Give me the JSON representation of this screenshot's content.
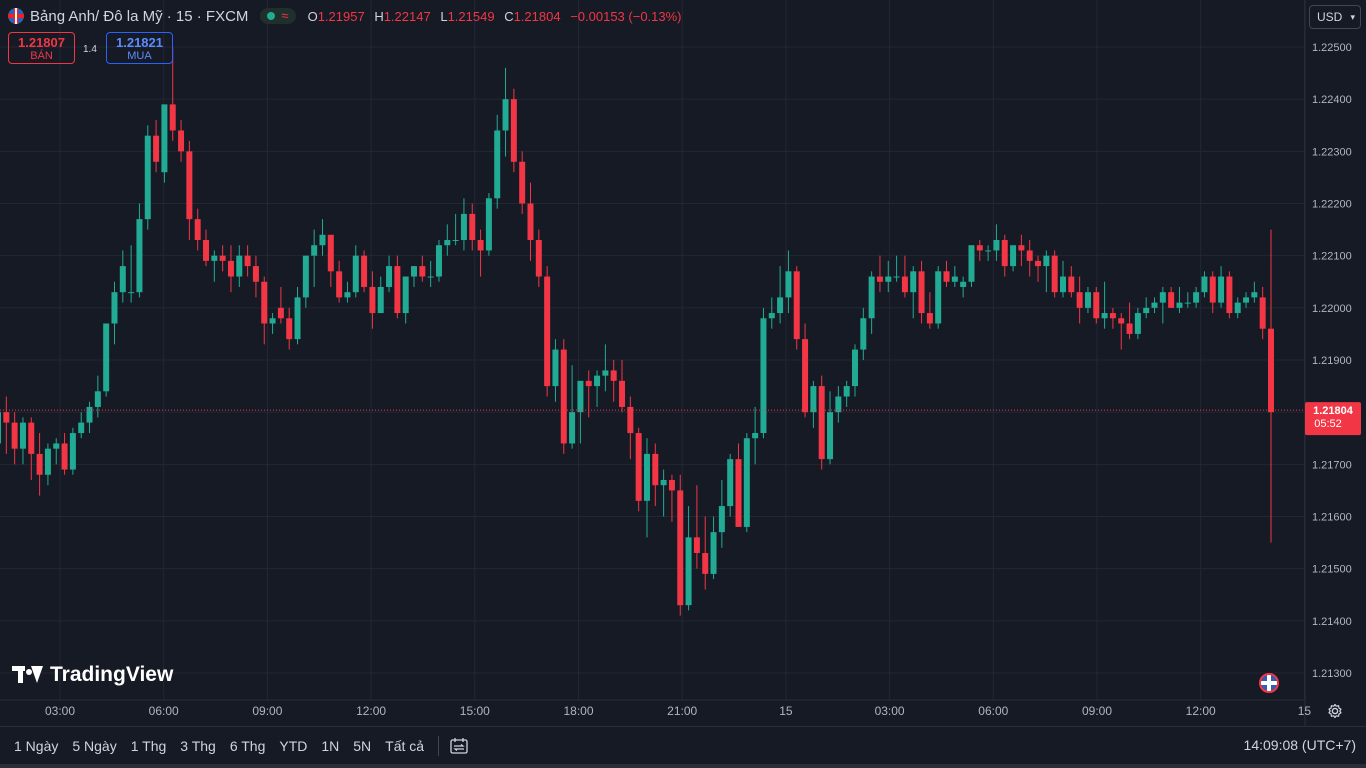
{
  "header": {
    "symbol": "Bảng Anh/ Đô la Mỹ · 15 · FXCM",
    "ohlc": [
      {
        "k": "O",
        "v": "1.21957"
      },
      {
        "k": "H",
        "v": "1.22147"
      },
      {
        "k": "L",
        "v": "1.21549"
      },
      {
        "k": "C",
        "v": "1.21804"
      }
    ],
    "change": "−0.00153 (−0.13%)",
    "currency": "USD"
  },
  "trade": {
    "sell_price": "1.21807",
    "sell_label": "BÁN",
    "buy_price": "1.21821",
    "buy_label": "MUA",
    "spread": "1.4"
  },
  "logo_text": "TradingView",
  "price_label": {
    "price": "1.21804",
    "countdown": "05:52"
  },
  "bottom_bar": {
    "ranges": [
      "1 Ngày",
      "5 Ngày",
      "1 Thg",
      "3 Thg",
      "6 Thg",
      "YTD",
      "1N",
      "5N",
      "Tất cả"
    ],
    "clock": "14:09:08 (UTC+7)"
  },
  "colors": {
    "up": "#22ab94",
    "down": "#f23645",
    "background": "#161a25",
    "grid": "#232734",
    "buy": "#2962ff"
  },
  "chart_data": {
    "type": "candlestick",
    "ylim": [
      1.2125,
      1.2255
    ],
    "y_ticks": [
      "1.22500",
      "1.22400",
      "1.22300",
      "1.22200",
      "1.22100",
      "1.22000",
      "1.21900",
      "1.21800",
      "1.21700",
      "1.21600",
      "1.21500",
      "1.21400",
      "1.21300"
    ],
    "x_ticks": [
      "03:00",
      "06:00",
      "09:00",
      "12:00",
      "15:00",
      "18:00",
      "21:00",
      "15",
      "03:00",
      "06:00",
      "09:00",
      "12:00",
      "15"
    ],
    "candles": [
      [
        1.2174,
        1.2181,
        1.2167,
        1.218
      ],
      [
        1.218,
        1.2183,
        1.2172,
        1.2178
      ],
      [
        1.2178,
        1.218,
        1.217,
        1.2173
      ],
      [
        1.2173,
        1.2179,
        1.217,
        1.2178
      ],
      [
        1.2178,
        1.2179,
        1.2167,
        1.2172
      ],
      [
        1.2172,
        1.2176,
        1.2164,
        1.2168
      ],
      [
        1.2168,
        1.2174,
        1.2166,
        1.2173
      ],
      [
        1.2173,
        1.2175,
        1.217,
        1.2174
      ],
      [
        1.2174,
        1.2176,
        1.2168,
        1.2169
      ],
      [
        1.2169,
        1.2177,
        1.2168,
        1.2176
      ],
      [
        1.2176,
        1.218,
        1.2175,
        1.2178
      ],
      [
        1.2178,
        1.2182,
        1.2176,
        1.2181
      ],
      [
        1.2181,
        1.2187,
        1.2179,
        1.2184
      ],
      [
        1.2184,
        1.2197,
        1.2183,
        1.2197
      ],
      [
        1.2197,
        1.2205,
        1.2193,
        1.2203
      ],
      [
        1.2203,
        1.2211,
        1.2201,
        1.2208
      ],
      [
        1.2203,
        1.2212,
        1.2201,
        1.2203
      ],
      [
        1.2203,
        1.222,
        1.2202,
        1.2217
      ],
      [
        1.2217,
        1.2235,
        1.2215,
        1.2233
      ],
      [
        1.2233,
        1.2236,
        1.2226,
        1.2228
      ],
      [
        1.2226,
        1.2239,
        1.2224,
        1.2239
      ],
      [
        1.2239,
        1.225,
        1.2232,
        1.2234
      ],
      [
        1.2234,
        1.2236,
        1.2228,
        1.223
      ],
      [
        1.223,
        1.2232,
        1.2213,
        1.2217
      ],
      [
        1.2217,
        1.2219,
        1.2211,
        1.2213
      ],
      [
        1.2213,
        1.2215,
        1.2208,
        1.2209
      ],
      [
        1.2209,
        1.2211,
        1.2205,
        1.221
      ],
      [
        1.221,
        1.2212,
        1.2207,
        1.2209
      ],
      [
        1.2209,
        1.2212,
        1.2203,
        1.2206
      ],
      [
        1.2206,
        1.2212,
        1.2204,
        1.221
      ],
      [
        1.221,
        1.2212,
        1.2206,
        1.2208
      ],
      [
        1.2208,
        1.221,
        1.2202,
        1.2205
      ],
      [
        1.2205,
        1.2206,
        1.2193,
        1.2197
      ],
      [
        1.2197,
        1.2199,
        1.2195,
        1.2198
      ],
      [
        1.22,
        1.2204,
        1.2197,
        1.2198
      ],
      [
        1.2198,
        1.22,
        1.2192,
        1.2194
      ],
      [
        1.2194,
        1.2204,
        1.2193,
        1.2202
      ],
      [
        1.2202,
        1.221,
        1.22,
        1.221
      ],
      [
        1.221,
        1.2215,
        1.2204,
        1.2212
      ],
      [
        1.2212,
        1.2217,
        1.221,
        1.2214
      ],
      [
        1.2214,
        1.2214,
        1.2204,
        1.2207
      ],
      [
        1.2207,
        1.2209,
        1.2201,
        1.2202
      ],
      [
        1.2202,
        1.2205,
        1.2201,
        1.2203
      ],
      [
        1.2203,
        1.2212,
        1.2202,
        1.221
      ],
      [
        1.221,
        1.2211,
        1.2203,
        1.2204
      ],
      [
        1.2204,
        1.2207,
        1.2196,
        1.2199
      ],
      [
        1.2199,
        1.2206,
        1.2199,
        1.2204
      ],
      [
        1.2204,
        1.221,
        1.2203,
        1.2208
      ],
      [
        1.2208,
        1.221,
        1.2198,
        1.2199
      ],
      [
        1.2199,
        1.2206,
        1.2197,
        1.2206
      ],
      [
        1.2206,
        1.2208,
        1.2204,
        1.2208
      ],
      [
        1.2208,
        1.221,
        1.2205,
        1.2206
      ],
      [
        1.2206,
        1.2209,
        1.2204,
        1.2206
      ],
      [
        1.2206,
        1.2213,
        1.2205,
        1.2212
      ],
      [
        1.2212,
        1.2216,
        1.221,
        1.2213
      ],
      [
        1.2213,
        1.2218,
        1.2212,
        1.2213
      ],
      [
        1.2213,
        1.2221,
        1.2211,
        1.2218
      ],
      [
        1.2218,
        1.222,
        1.2211,
        1.2213
      ],
      [
        1.2213,
        1.2215,
        1.2206,
        1.2211
      ],
      [
        1.2211,
        1.2222,
        1.221,
        1.2221
      ],
      [
        1.2221,
        1.2237,
        1.2219,
        1.2234
      ],
      [
        1.2234,
        1.2246,
        1.2229,
        1.224
      ],
      [
        1.224,
        1.2242,
        1.2226,
        1.2228
      ],
      [
        1.2228,
        1.223,
        1.2218,
        1.222
      ],
      [
        1.222,
        1.2224,
        1.2209,
        1.2213
      ],
      [
        1.2213,
        1.2215,
        1.2204,
        1.2206
      ],
      [
        1.2206,
        1.2208,
        1.2183,
        1.2185
      ],
      [
        1.2185,
        1.2194,
        1.2182,
        1.2192
      ],
      [
        1.2192,
        1.2194,
        1.2172,
        1.2174
      ],
      [
        1.2174,
        1.2189,
        1.2173,
        1.218
      ],
      [
        1.218,
        1.2186,
        1.2174,
        1.2186
      ],
      [
        1.2186,
        1.2188,
        1.2179,
        1.2185
      ],
      [
        1.2185,
        1.2188,
        1.2181,
        1.2187
      ],
      [
        1.2187,
        1.2193,
        1.2184,
        1.2188
      ],
      [
        1.2188,
        1.219,
        1.2182,
        1.2186
      ],
      [
        1.2186,
        1.219,
        1.218,
        1.2181
      ],
      [
        1.2181,
        1.2183,
        1.2171,
        1.2176
      ],
      [
        1.2176,
        1.2177,
        1.2161,
        1.2163
      ],
      [
        1.2163,
        1.2175,
        1.2156,
        1.2172
      ],
      [
        1.2172,
        1.2174,
        1.2162,
        1.2166
      ],
      [
        1.2166,
        1.2169,
        1.216,
        1.2167
      ],
      [
        1.2167,
        1.2168,
        1.2159,
        1.2165
      ],
      [
        1.2165,
        1.2168,
        1.2141,
        1.2143
      ],
      [
        1.2143,
        1.2162,
        1.2142,
        1.2156
      ],
      [
        1.2156,
        1.2166,
        1.215,
        1.2153
      ],
      [
        1.2153,
        1.216,
        1.2146,
        1.2149
      ],
      [
        1.2149,
        1.216,
        1.2148,
        1.2157
      ],
      [
        1.2157,
        1.2167,
        1.2154,
        1.2162
      ],
      [
        1.2162,
        1.2172,
        1.216,
        1.2171
      ],
      [
        1.2171,
        1.2174,
        1.2158,
        1.2158
      ],
      [
        1.2158,
        1.2176,
        1.2157,
        1.2175
      ],
      [
        1.2175,
        1.2181,
        1.217,
        1.2176
      ],
      [
        1.2176,
        1.22,
        1.2175,
        1.2198
      ],
      [
        1.2198,
        1.2202,
        1.2196,
        1.2199
      ],
      [
        1.2199,
        1.2208,
        1.2197,
        1.2202
      ],
      [
        1.2202,
        1.2211,
        1.2199,
        1.2207
      ],
      [
        1.2207,
        1.2208,
        1.2192,
        1.2194
      ],
      [
        1.2194,
        1.2197,
        1.2179,
        1.218
      ],
      [
        1.218,
        1.2186,
        1.2177,
        1.2185
      ],
      [
        1.2185,
        1.2187,
        1.2169,
        1.2171
      ],
      [
        1.2171,
        1.2184,
        1.217,
        1.218
      ],
      [
        1.218,
        1.2185,
        1.2178,
        1.2183
      ],
      [
        1.2183,
        1.2186,
        1.2181,
        1.2185
      ],
      [
        1.2185,
        1.2193,
        1.2183,
        1.2192
      ],
      [
        1.2192,
        1.22,
        1.219,
        1.2198
      ],
      [
        1.2198,
        1.2207,
        1.2195,
        1.2206
      ],
      [
        1.2206,
        1.221,
        1.2203,
        1.2205
      ],
      [
        1.2205,
        1.2209,
        1.2203,
        1.2206
      ],
      [
        1.2206,
        1.221,
        1.2205,
        1.2206
      ],
      [
        1.2206,
        1.221,
        1.2202,
        1.2203
      ],
      [
        1.2203,
        1.2208,
        1.2198,
        1.2207
      ],
      [
        1.2207,
        1.2209,
        1.2197,
        1.2199
      ],
      [
        1.2199,
        1.2203,
        1.2196,
        1.2197
      ],
      [
        1.2197,
        1.2208,
        1.2196,
        1.2207
      ],
      [
        1.2207,
        1.2209,
        1.2204,
        1.2205
      ],
      [
        1.2205,
        1.2208,
        1.2204,
        1.2206
      ],
      [
        1.2204,
        1.2206,
        1.2202,
        1.2205
      ],
      [
        1.2205,
        1.2212,
        1.2204,
        1.2212
      ],
      [
        1.2212,
        1.2213,
        1.2209,
        1.2211
      ],
      [
        1.2211,
        1.2212,
        1.2209,
        1.2211
      ],
      [
        1.2211,
        1.2216,
        1.2209,
        1.2213
      ],
      [
        1.2213,
        1.2214,
        1.2206,
        1.2208
      ],
      [
        1.2208,
        1.2211,
        1.2207,
        1.2212
      ],
      [
        1.2212,
        1.2214,
        1.2208,
        1.2211
      ],
      [
        1.2211,
        1.2213,
        1.2206,
        1.2209
      ],
      [
        1.2209,
        1.221,
        1.2205,
        1.2208
      ],
      [
        1.2208,
        1.2211,
        1.2203,
        1.221
      ],
      [
        1.221,
        1.2211,
        1.2202,
        1.2203
      ],
      [
        1.2203,
        1.2209,
        1.2202,
        1.2206
      ],
      [
        1.2206,
        1.2208,
        1.2202,
        1.2203
      ],
      [
        1.2203,
        1.2206,
        1.2197,
        1.22
      ],
      [
        1.22,
        1.2204,
        1.2199,
        1.2203
      ],
      [
        1.2203,
        1.2204,
        1.2197,
        1.2198
      ],
      [
        1.2198,
        1.2205,
        1.2196,
        1.2199
      ],
      [
        1.2199,
        1.22,
        1.2196,
        1.2198
      ],
      [
        1.2198,
        1.2199,
        1.2192,
        1.2197
      ],
      [
        1.2197,
        1.2201,
        1.2194,
        1.2195
      ],
      [
        1.2195,
        1.22,
        1.2194,
        1.2199
      ],
      [
        1.2199,
        1.2202,
        1.2198,
        1.22
      ],
      [
        1.22,
        1.2202,
        1.2199,
        1.2201
      ],
      [
        1.2201,
        1.2204,
        1.2197,
        1.2203
      ],
      [
        1.2203,
        1.2204,
        1.22,
        1.22
      ],
      [
        1.22,
        1.2204,
        1.2199,
        1.2201
      ],
      [
        1.2201,
        1.2203,
        1.22,
        1.2201
      ],
      [
        1.2201,
        1.2204,
        1.22,
        1.2203
      ],
      [
        1.2203,
        1.2207,
        1.2202,
        1.2206
      ],
      [
        1.2206,
        1.2207,
        1.2199,
        1.2201
      ],
      [
        1.2201,
        1.2208,
        1.22,
        1.2206
      ],
      [
        1.2206,
        1.2207,
        1.2198,
        1.2199
      ],
      [
        1.2199,
        1.2202,
        1.2198,
        1.2201
      ],
      [
        1.2201,
        1.2203,
        1.22,
        1.2202
      ],
      [
        1.2202,
        1.2205,
        1.2201,
        1.2203
      ],
      [
        1.2202,
        1.2204,
        1.2194,
        1.2196
      ],
      [
        1.2196,
        1.2215,
        1.2155,
        1.218
      ]
    ]
  }
}
